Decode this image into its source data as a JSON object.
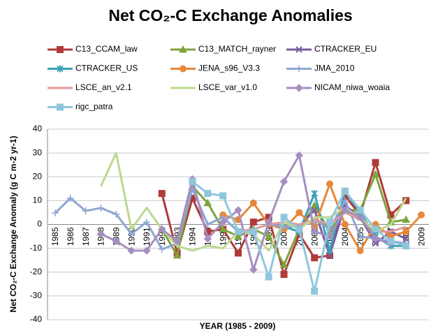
{
  "chart_data": {
    "type": "line",
    "title": "Net CO₂-C Exchange Anomalies",
    "y_label": "Net CO₂-C Exchange Anomaly (g C m-2 yr-1)",
    "x_label": "YEAR (1985 - 2009)",
    "categories": [
      "1985",
      "1986",
      "1987",
      "1988",
      "1989",
      "1990",
      "1991",
      "1992",
      "1993",
      "1994",
      "1995",
      "1996",
      "1997",
      "1998",
      "1999",
      "2000",
      "2001",
      "2002",
      "2003",
      "2004",
      "2005",
      "2006",
      "2007",
      "2008",
      "2009"
    ],
    "ylim": [
      -40,
      40
    ],
    "yticks": [
      -40,
      -30,
      -20,
      -10,
      0,
      10,
      20,
      30,
      40
    ],
    "grid": true,
    "series": [
      {
        "name": "C13_CCAM_law",
        "color": "#b03a3a",
        "marker": "square",
        "values": [
          null,
          null,
          null,
          null,
          null,
          null,
          null,
          13,
          -12,
          11,
          -3,
          -2,
          -12,
          1,
          3,
          -21,
          -4,
          -14,
          -13,
          12,
          4,
          26,
          4,
          10,
          null
        ]
      },
      {
        "name": "C13_MATCH_rayner",
        "color": "#7ea33c",
        "marker": "triangle",
        "values": [
          null,
          null,
          null,
          null,
          null,
          null,
          null,
          -2,
          -13,
          16,
          9,
          -2,
          -5,
          -2,
          -5,
          -17,
          -2,
          8,
          -3,
          6,
          6,
          21,
          1,
          2,
          null
        ]
      },
      {
        "name": "CTRACKER_EU",
        "color": "#7a5ba0",
        "marker": "x",
        "values": [
          null,
          null,
          null,
          null,
          null,
          null,
          null,
          null,
          null,
          null,
          null,
          null,
          null,
          null,
          null,
          null,
          -1,
          6,
          -13,
          8,
          3,
          -8,
          -3,
          -6,
          null
        ]
      },
      {
        "name": "CTRACKER_US",
        "color": "#3aa1b5",
        "marker": "star",
        "values": [
          null,
          null,
          null,
          null,
          null,
          null,
          null,
          null,
          null,
          null,
          null,
          null,
          null,
          null,
          null,
          -1,
          -3,
          13,
          -11,
          14,
          5,
          -5,
          -9,
          -9,
          null
        ]
      },
      {
        "name": "JENA_s96_V3.3",
        "color": "#e6883a",
        "marker": "circle",
        "values": [
          null,
          null,
          null,
          null,
          null,
          null,
          null,
          null,
          null,
          null,
          null,
          4,
          2,
          9,
          0,
          -2,
          5,
          -1,
          17,
          0,
          -11,
          0,
          -5,
          -3,
          4
        ]
      },
      {
        "name": "JMA_2010",
        "color": "#8ea6d2",
        "marker": "plus",
        "values": [
          4.8,
          11,
          5.7,
          6.9,
          4.3,
          -4,
          1,
          -10.4,
          -8,
          15,
          0,
          3,
          -3,
          -2,
          0,
          -1,
          -1,
          2,
          -2,
          10,
          -5,
          -6,
          -7,
          -8,
          null
        ]
      },
      {
        "name": "LSCE_an_v2.1",
        "color": "#e09a9a",
        "marker": "none",
        "values": [
          null,
          null,
          null,
          null,
          null,
          null,
          null,
          null,
          null,
          null,
          null,
          null,
          -3,
          -2,
          0,
          1,
          0,
          2,
          0,
          5,
          2,
          -3,
          -3,
          -1,
          null
        ]
      },
      {
        "name": "LSCE_var_v1.0",
        "color": "#bcd98f",
        "marker": "none",
        "values": [
          null,
          null,
          null,
          16,
          30,
          -2,
          7,
          -2,
          -9,
          -11,
          -9,
          -10,
          -3,
          -4,
          -11,
          1,
          -2,
          3,
          3,
          7,
          3,
          -3,
          0,
          11,
          null
        ]
      },
      {
        "name": "NICAM_niwa_woaia",
        "color": "#a58fc0",
        "marker": "diamond",
        "values": [
          null,
          null,
          null,
          -4,
          -7,
          -11,
          -11,
          -2,
          -7,
          19,
          -6,
          1,
          6,
          -19,
          1,
          18,
          29,
          -3,
          -5,
          6,
          3,
          -6,
          -8,
          null,
          null
        ]
      },
      {
        "name": "rigc_patra",
        "color": "#8fc6dc",
        "marker": "square",
        "values": [
          null,
          null,
          null,
          null,
          null,
          null,
          null,
          null,
          null,
          18,
          13,
          12,
          -3,
          -3,
          -22,
          3,
          -2,
          -28,
          1,
          14,
          6,
          -2,
          -7,
          -9,
          null
        ]
      }
    ]
  }
}
